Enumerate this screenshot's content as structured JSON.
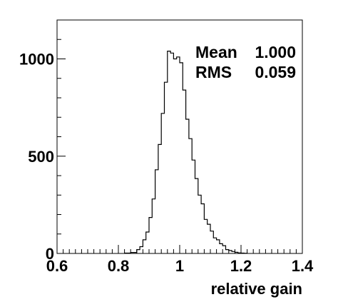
{
  "chart_data": {
    "type": "histogram",
    "title": "",
    "xlabel": "relative gain",
    "ylabel": "",
    "xlim": [
      0.6,
      1.4
    ],
    "ylim": [
      0,
      1200
    ],
    "x_ticks": [
      0.6,
      0.8,
      1.0,
      1.2,
      1.4
    ],
    "x_tick_labels": [
      "0.6",
      "0.8",
      "1",
      "1.2",
      "1.4"
    ],
    "y_ticks": [
      0,
      500,
      1000
    ],
    "y_tick_labels": [
      "0",
      "500",
      "1000"
    ],
    "grid": false,
    "bin_edges": [
      0.82,
      0.84,
      0.86,
      0.87,
      0.88,
      0.89,
      0.9,
      0.91,
      0.92,
      0.93,
      0.94,
      0.95,
      0.96,
      0.97,
      0.98,
      0.99,
      1.0,
      1.01,
      1.02,
      1.03,
      1.04,
      1.05,
      1.06,
      1.07,
      1.08,
      1.09,
      1.1,
      1.11,
      1.12,
      1.13,
      1.14,
      1.15,
      1.16,
      1.17,
      1.18,
      1.19,
      1.2,
      1.21,
      1.22
    ],
    "bin_counts": [
      2,
      5,
      20,
      35,
      70,
      110,
      185,
      280,
      430,
      560,
      720,
      880,
      1040,
      1030,
      1000,
      1010,
      980,
      840,
      690,
      590,
      480,
      385,
      300,
      255,
      175,
      150,
      115,
      80,
      70,
      50,
      40,
      20,
      15,
      10,
      6,
      3,
      2,
      1
    ],
    "stats": [
      {
        "label": "Mean",
        "value": "1.000"
      },
      {
        "label": "RMS",
        "value": "0.059"
      }
    ]
  }
}
